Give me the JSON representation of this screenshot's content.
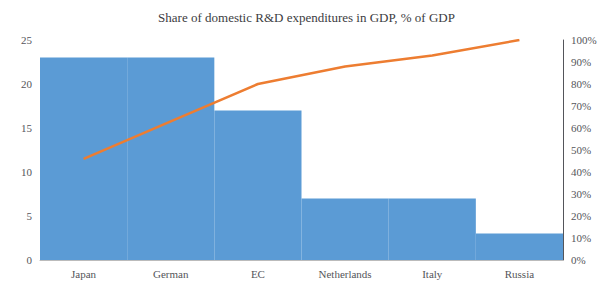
{
  "chart_data": {
    "type": "bar",
    "title": "Share of domestic R&D expenditures in GDP, % of GDP",
    "categories": [
      "Japan",
      "German",
      "EC",
      "Netherlands",
      "Italy",
      "Russia"
    ],
    "series": [
      {
        "type": "bar",
        "color": "#5B9BD5",
        "values": [
          23,
          23,
          17,
          7,
          7,
          3
        ]
      },
      {
        "type": "line",
        "color": "#ED7D31",
        "axis": "y2",
        "values": [
          46,
          63,
          80,
          88,
          93,
          100
        ]
      }
    ],
    "ylim": [
      0,
      25
    ],
    "yticks": [
      0,
      5,
      10,
      15,
      20,
      25
    ],
    "y2lim": [
      0,
      100
    ],
    "y2ticks": [
      {
        "value": 0,
        "label": "0%"
      },
      {
        "value": 10,
        "label": "10%"
      },
      {
        "value": 20,
        "label": "20%"
      },
      {
        "value": 30,
        "label": "30%"
      },
      {
        "value": 40,
        "label": "40%"
      },
      {
        "value": 50,
        "label": "50%"
      },
      {
        "value": 60,
        "label": "60%"
      },
      {
        "value": 70,
        "label": "70%"
      },
      {
        "value": 80,
        "label": "80%"
      },
      {
        "value": 90,
        "label": "90%"
      },
      {
        "value": 100,
        "label": "100%"
      }
    ],
    "grid": false
  }
}
